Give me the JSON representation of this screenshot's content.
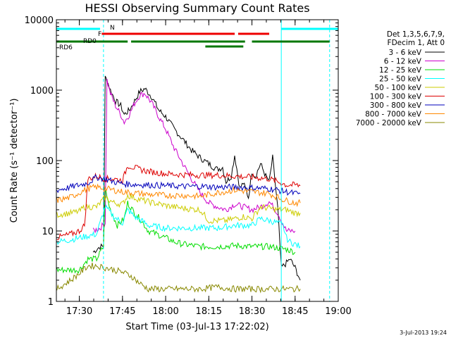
{
  "chart_data": {
    "type": "line",
    "title": "HESSI Observing Summary Count Rates",
    "xlabel": "Start Time (03-Jul-13 17:22:02)",
    "ylabel": "Count Rate (s⁻¹ detector⁻¹)",
    "ylog": true,
    "xlim": [
      17.367,
      19.0
    ],
    "ylim": [
      1,
      10000
    ],
    "x_ticks": [
      "17:30",
      "17:45",
      "18:00",
      "18:15",
      "18:30",
      "18:45",
      "19:00"
    ],
    "x_tick_hours": [
      17.5,
      17.75,
      18.0,
      18.25,
      18.5,
      18.75,
      19.0
    ],
    "y_ticks": [
      "1",
      "10",
      "100",
      "1000",
      "10000"
    ],
    "y_tick_values": [
      1,
      10,
      100,
      1000,
      10000
    ],
    "legend_header": [
      "Det 1,3,5,6,7,9,",
      "FDecim 1, Att 0"
    ],
    "legend_position": "right",
    "series": [
      {
        "name": "3 - 6 keV",
        "color": "#000000",
        "x": [
          17.58,
          17.6,
          17.62,
          17.64,
          17.65,
          17.66,
          17.68,
          17.71,
          17.74,
          17.76,
          17.79,
          17.82,
          17.85,
          17.88,
          17.92,
          17.96,
          18.0,
          18.05,
          18.1,
          18.15,
          18.2,
          18.25,
          18.28,
          18.3,
          18.33,
          18.35,
          18.38,
          18.4,
          18.43,
          18.45,
          18.48,
          18.5,
          18.52,
          18.55,
          18.58,
          18.6,
          18.62,
          18.65,
          18.67,
          18.7,
          18.72,
          18.75,
          18.78
        ],
        "y": [
          5,
          5.5,
          6,
          6,
          1500,
          1400,
          1000,
          700,
          600,
          450,
          520,
          700,
          950,
          1050,
          800,
          520,
          420,
          280,
          200,
          140,
          110,
          90,
          80,
          75,
          80,
          50,
          60,
          120,
          40,
          48,
          30,
          70,
          60,
          90,
          60,
          50,
          110,
          20,
          3,
          3.5,
          4,
          3,
          2
        ]
      },
      {
        "name": "6 - 12 keV",
        "color": "#cc00cc",
        "x": [
          17.58,
          17.62,
          17.65,
          17.66,
          17.68,
          17.71,
          17.74,
          17.76,
          17.79,
          17.82,
          17.85,
          17.88,
          17.92,
          17.96,
          18.0,
          18.05,
          18.1,
          18.15,
          18.2,
          18.25,
          18.3,
          18.35,
          18.4,
          18.45,
          18.5,
          18.55,
          18.6,
          18.65,
          18.7,
          18.75
        ],
        "y": [
          10,
          11,
          13,
          1400,
          900,
          600,
          450,
          350,
          450,
          650,
          850,
          900,
          650,
          420,
          280,
          150,
          90,
          55,
          35,
          25,
          22,
          20,
          24,
          22,
          20,
          22,
          26,
          18,
          10,
          10
        ]
      },
      {
        "name": "12 - 25 keV",
        "color": "#00dd00",
        "x": [
          17.37,
          17.5,
          17.55,
          17.6,
          17.64,
          17.65,
          17.66,
          17.68,
          17.72,
          17.76,
          17.78,
          17.82,
          17.86,
          17.9,
          17.95,
          18.0,
          18.05,
          18.1,
          18.2,
          18.3,
          18.4,
          18.5,
          18.6,
          18.7,
          18.75
        ],
        "y": [
          2.8,
          2.8,
          4,
          4,
          6,
          40,
          30,
          20,
          12,
          15,
          25,
          18,
          14,
          10,
          9,
          8,
          7,
          6.5,
          6,
          6,
          6.2,
          6,
          6,
          5.5,
          5
        ]
      },
      {
        "name": "25 - 50 keV",
        "color": "#00ffff",
        "x": [
          17.37,
          17.45,
          17.5,
          17.55,
          17.6,
          17.65,
          17.7,
          17.75,
          17.78,
          17.82,
          17.86,
          17.9,
          18.0,
          18.1,
          18.2,
          18.3,
          18.4,
          18.5,
          18.55,
          18.6,
          18.65,
          18.68,
          18.7,
          18.72,
          18.75,
          18.78
        ],
        "y": [
          7,
          7.5,
          8,
          8.5,
          9,
          22,
          16,
          13,
          20,
          16,
          14,
          12,
          11,
          11,
          11,
          11,
          12,
          12,
          15,
          14,
          13,
          12,
          8,
          7,
          6.5,
          6
        ]
      },
      {
        "name": "50 - 100 keV",
        "color": "#cccc00",
        "x": [
          17.37,
          17.45,
          17.5,
          17.53,
          17.6,
          17.65,
          17.7,
          17.75,
          17.78,
          17.85,
          17.9,
          18.0,
          18.1,
          18.2,
          18.25,
          18.3,
          18.35,
          18.4,
          18.45,
          18.5,
          18.55,
          18.6,
          18.65,
          18.7,
          18.75,
          18.78
        ],
        "y": [
          17,
          18,
          19,
          22,
          22,
          30,
          25,
          24,
          32,
          28,
          26,
          23,
          21,
          20,
          14,
          14,
          14,
          15,
          16,
          15,
          22,
          21,
          20,
          20,
          18,
          18
        ]
      },
      {
        "name": "100 - 300 keV",
        "color": "#dd0000",
        "x": [
          17.37,
          17.45,
          17.5,
          17.53,
          17.55,
          17.6,
          17.65,
          17.7,
          17.75,
          17.78,
          17.85,
          17.9,
          18.0,
          18.1,
          18.2,
          18.3,
          18.4,
          18.5,
          18.6,
          18.65,
          18.7,
          18.75,
          18.78
        ],
        "y": [
          8,
          9,
          10,
          12,
          55,
          60,
          55,
          55,
          52,
          85,
          75,
          70,
          65,
          63,
          62,
          62,
          60,
          58,
          55,
          50,
          45,
          45,
          44
        ]
      },
      {
        "name": "300 - 800 keV",
        "color": "#0000bb",
        "x": [
          17.37,
          17.45,
          17.5,
          17.55,
          17.6,
          17.65,
          17.7,
          17.75,
          17.8,
          17.9,
          18.0,
          18.1,
          18.2,
          18.3,
          18.4,
          18.5,
          18.6,
          18.65,
          18.7,
          18.75,
          18.78
        ],
        "y": [
          38,
          42,
          45,
          48,
          58,
          55,
          50,
          47,
          46,
          45,
          44,
          43,
          43,
          42,
          42,
          41,
          40,
          38,
          36,
          34,
          34
        ]
      },
      {
        "name": "800 - 7000 keV",
        "color": "#ff8800",
        "x": [
          17.37,
          17.45,
          17.5,
          17.55,
          17.6,
          17.65,
          17.7,
          17.75,
          17.8,
          17.9,
          18.0,
          18.1,
          18.2,
          18.3,
          18.4,
          18.5,
          18.6,
          18.65,
          18.7,
          18.75,
          18.78
        ],
        "y": [
          27,
          30,
          35,
          40,
          42,
          40,
          38,
          36,
          35,
          33,
          32,
          32,
          31,
          35,
          38,
          36,
          34,
          30,
          27,
          25,
          25
        ]
      },
      {
        "name": "7000 - 20000 keV",
        "color": "#888800",
        "x": [
          17.37,
          17.45,
          17.5,
          17.55,
          17.6,
          17.65,
          17.7,
          17.75,
          17.8,
          17.85,
          17.9,
          18.0,
          18.1,
          18.2,
          18.3,
          18.4,
          18.5,
          18.6,
          18.7,
          18.75,
          18.78
        ],
        "y": [
          1.5,
          2,
          2.5,
          3.2,
          3.2,
          3,
          2.8,
          2.6,
          2.3,
          1.8,
          1.5,
          1.5,
          1.5,
          1.5,
          1.6,
          1.5,
          1.5,
          1.5,
          1.5,
          1.5,
          1.5
        ]
      }
    ],
    "annotations": {
      "N": {
        "color": "#00ffff",
        "segments": [
          [
            17.367,
            17.62
          ],
          [
            18.67,
            19.0
          ]
        ]
      },
      "F": {
        "color": "#ee0000",
        "segments": [
          [
            17.63,
            18.4
          ],
          [
            18.42,
            18.6
          ]
        ]
      },
      "RD0": {
        "color": "#007700",
        "segments": [
          [
            17.367,
            17.5
          ],
          [
            17.55,
            17.62
          ]
        ]
      },
      "RD6": {
        "color": "#007700",
        "segments": [
          [
            17.45,
            17.78
          ],
          [
            17.8,
            18.46
          ],
          [
            18.5,
            18.95
          ]
        ]
      },
      "RD6b": {
        "color": "#007700",
        "segments": [
          [
            18.23,
            18.45
          ]
        ]
      }
    },
    "vlines": {
      "solid": [
        17.367,
        18.67
      ],
      "dashed": [
        17.64,
        18.95
      ],
      "color": "#00ffff"
    },
    "timestamp": "3-Jul-2013 19:24",
    "grid": false
  }
}
